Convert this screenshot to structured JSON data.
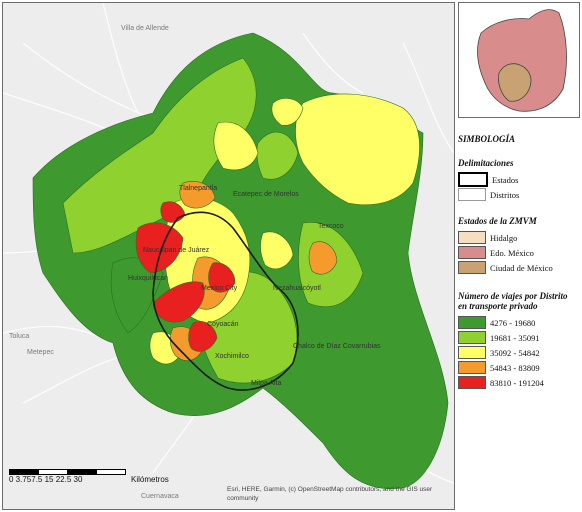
{
  "map": {
    "place_labels": [
      "Villa de Allende",
      "Metepec",
      "Toluca",
      "Cuernavaca",
      "Mexico City",
      "Milpa Alta",
      "Tlalnepantla",
      "Ecatepec de Morelos",
      "Naucalpan de Juárez",
      "Huixquilucan",
      "Coyoacán",
      "Nezahualcóyotl",
      "Chalco de Díaz Covarrubias",
      "Xochimilco",
      "Texcoco"
    ],
    "scale_bar": {
      "ticks": "0 3.757.5     15       22.5      30",
      "unit": "Kilómetros"
    },
    "credits": "Esri, HERE, Garmin, (c) OpenStreetMap contributors, and the GIS user community"
  },
  "legend": {
    "title": "SIMBOLOGÍA",
    "delineations": {
      "heading": "Delimitaciones",
      "items": [
        {
          "label": "Estados",
          "color": "#ffffff",
          "border": "#000000"
        },
        {
          "label": "Distritos",
          "color": "#ffffff",
          "border": "#9a9a9a"
        }
      ]
    },
    "states": {
      "heading": "Estados de la ZMVM",
      "items": [
        {
          "label": "Hidalgo",
          "color": "#f5dfc0"
        },
        {
          "label": "Edo. México",
          "color": "#d98c8c"
        },
        {
          "label": "Ciudad de México",
          "color": "#c9a273"
        }
      ]
    },
    "trips": {
      "heading_line1": "Número de viajes por Distrito",
      "heading_line2": "en transporte privado",
      "classes": [
        {
          "label": "4276 - 19680",
          "color": "#3e9a2f"
        },
        {
          "label": "19681 - 35091",
          "color": "#8fd12e"
        },
        {
          "label": "35092 - 54842",
          "color": "#ffff66"
        },
        {
          "label": "54843 - 83809",
          "color": "#f59a2c"
        },
        {
          "label": "83810 - 191204",
          "color": "#e82020"
        }
      ]
    }
  },
  "colors": {
    "background": "#ededed",
    "class_1": "#3e9a2f",
    "class_2": "#8fd12e",
    "class_3": "#ffff66",
    "class_4": "#f59a2c",
    "class_5": "#e82020"
  }
}
